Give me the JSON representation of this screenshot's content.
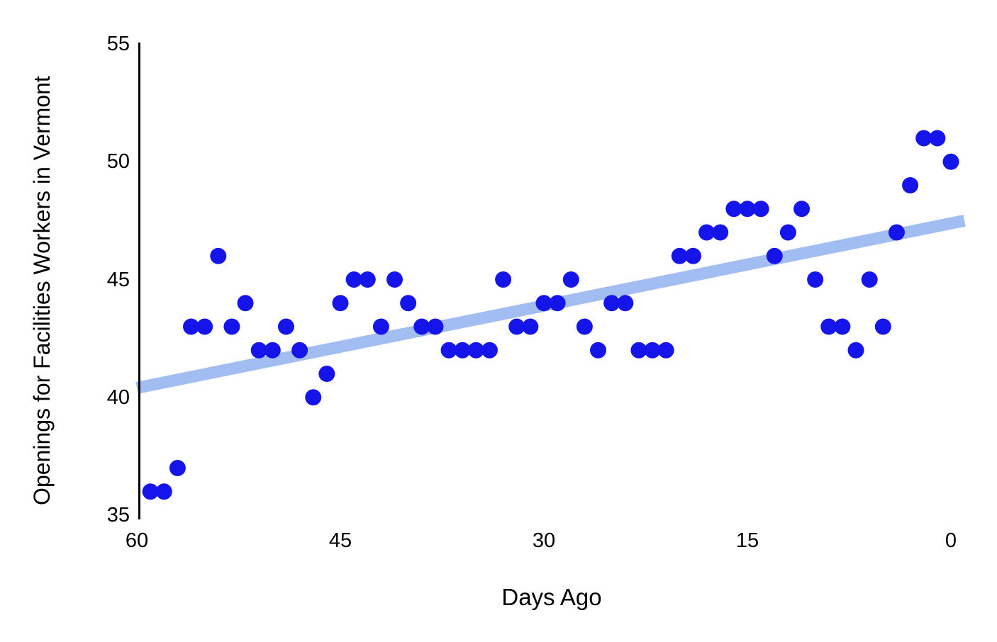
{
  "figure": {
    "background": "#ffffff"
  },
  "chart_data": {
    "type": "scatter",
    "title": "",
    "xlabel": "Days Ago",
    "ylabel": "Openings for Facilities Workers in Vermont",
    "x_axis_reversed": true,
    "xlim": [
      60,
      0
    ],
    "ylim": [
      35,
      55
    ],
    "x_ticks": [
      60,
      45,
      30,
      15,
      0
    ],
    "y_ticks": [
      35,
      40,
      45,
      50,
      55
    ],
    "grid": false,
    "legend": false,
    "colors": {
      "point": "#1515eb",
      "trend": "#a2bdf2",
      "axis": "#000000",
      "text": "#000000"
    },
    "series": [
      {
        "name": "Openings for Facilities Workers in Vermont",
        "marker": "circle",
        "color": "#1515eb",
        "points": [
          [
            59,
            36
          ],
          [
            58,
            36
          ],
          [
            57,
            37
          ],
          [
            56,
            43
          ],
          [
            55,
            43
          ],
          [
            54,
            46
          ],
          [
            53,
            43
          ],
          [
            52,
            44
          ],
          [
            51,
            42
          ],
          [
            50,
            42
          ],
          [
            49,
            43
          ],
          [
            48,
            42
          ],
          [
            47,
            40
          ],
          [
            46,
            41
          ],
          [
            45,
            44
          ],
          [
            44,
            45
          ],
          [
            43,
            45
          ],
          [
            42,
            43
          ],
          [
            41,
            45
          ],
          [
            40,
            44
          ],
          [
            39,
            43
          ],
          [
            38,
            43
          ],
          [
            37,
            42
          ],
          [
            36,
            42
          ],
          [
            35,
            42
          ],
          [
            34,
            42
          ],
          [
            33,
            45
          ],
          [
            32,
            43
          ],
          [
            31,
            43
          ],
          [
            30,
            44
          ],
          [
            29,
            44
          ],
          [
            28,
            45
          ],
          [
            27,
            43
          ],
          [
            26,
            42
          ],
          [
            25,
            44
          ],
          [
            24,
            44
          ],
          [
            23,
            42
          ],
          [
            22,
            42
          ],
          [
            21,
            42
          ],
          [
            20,
            46
          ],
          [
            19,
            46
          ],
          [
            18,
            47
          ],
          [
            17,
            47
          ],
          [
            16,
            48
          ],
          [
            15,
            48
          ],
          [
            14,
            48
          ],
          [
            13,
            46
          ],
          [
            12,
            47
          ],
          [
            11,
            48
          ],
          [
            10,
            45
          ],
          [
            9,
            43
          ],
          [
            8,
            43
          ],
          [
            7,
            42
          ],
          [
            6,
            45
          ],
          [
            5,
            43
          ],
          [
            4,
            47
          ],
          [
            3,
            49
          ],
          [
            2,
            51
          ],
          [
            1,
            51
          ],
          [
            0,
            50
          ]
        ]
      }
    ],
    "trend_line": {
      "color": "#a2bdf2",
      "x1": 60,
      "y1": 40.4,
      "x2": -1,
      "y2": 47.5
    }
  }
}
